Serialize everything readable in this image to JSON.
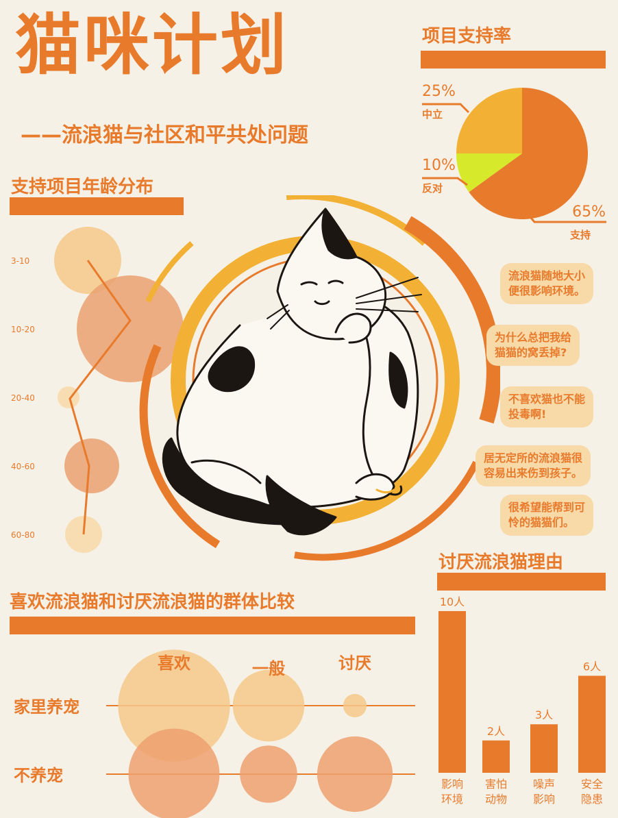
{
  "header": {
    "title": "猫咪计划",
    "subtitle": "——流浪猫与社区和平共处问题"
  },
  "colors": {
    "orange": "#e87a2c",
    "yellow": "#f2b134",
    "lime": "#d6e92a",
    "light": "#f8d9a8",
    "bg": "#f6f1e7"
  },
  "support_rate": {
    "heading": "项目支持率"
  },
  "age_dist": {
    "heading": "支持项目年龄分布"
  },
  "compare": {
    "heading": "喜欢流浪猫和讨厌流浪猫的群体比较"
  },
  "reasons": {
    "heading": "讨厌流浪猫理由"
  },
  "quotes": [
    "流浪猫随地大小\n便很影响环境。",
    "为什么总把我给\n猫猫的窝丢掉?",
    "不喜欢猫也不能\n投毒啊!",
    "居无定所的流浪猫很\n容易出来伤到孩子。",
    "很希望能帮到可\n怜的猫猫们。"
  ],
  "illustration": {
    "icon": "cat-illustration"
  },
  "chart_data": [
    {
      "type": "pie",
      "title": "项目支持率",
      "slices": [
        {
          "label": "支持",
          "value": 65,
          "display": "65%",
          "color": "#e87a2c"
        },
        {
          "label": "反对",
          "value": 10,
          "display": "10%",
          "color": "#d6e92a"
        },
        {
          "label": "中立",
          "value": 25,
          "display": "25%",
          "color": "#f2b134"
        }
      ]
    },
    {
      "type": "scatter",
      "title": "支持项目年龄分布",
      "categories": [
        "3-10",
        "10-20",
        "20-40",
        "40-60",
        "60-80"
      ],
      "relative_size": [
        0.49,
        0.78,
        0.16,
        0.4,
        0.27
      ],
      "line_x": [
        0.35,
        0.7,
        0.1,
        0.48,
        0.28
      ]
    },
    {
      "type": "scatter",
      "title": "喜欢流浪猫和讨厌流浪猫的群体比较",
      "columns": [
        "喜欢",
        "一般",
        "讨厌"
      ],
      "rows": [
        "家里养宠",
        "不养宠"
      ],
      "relative_size": [
        [
          0.86,
          0.55,
          0.18
        ],
        [
          0.7,
          0.44,
          0.58
        ]
      ]
    },
    {
      "type": "bar",
      "title": "讨厌流浪猫理由",
      "categories": [
        "影响\n环境",
        "害怕\n动物",
        "噪声\n影响",
        "安全\n隐患"
      ],
      "values": [
        10,
        2,
        3,
        6
      ],
      "value_labels": [
        "10人",
        "2人",
        "3人",
        "6人"
      ],
      "ylim": [
        0,
        10
      ]
    }
  ]
}
